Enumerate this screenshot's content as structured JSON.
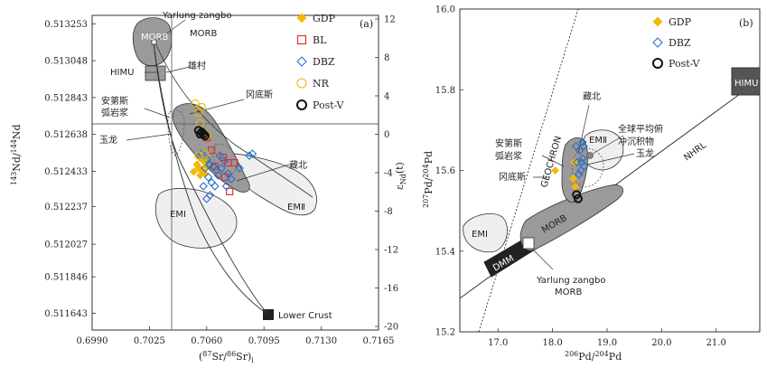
{
  "chart_data": [
    {
      "type": "scatter",
      "panel_label": "(a)",
      "xlabel": "(87Sr/86Sr)i",
      "ylabel": "143Nd/144Nd",
      "y2label": "εNd(t)",
      "xlim": [
        0.699,
        0.7165
      ],
      "ylim": [
        0.51155,
        0.5133
      ],
      "x_ticks": [
        "0.6990",
        "0.7025",
        "0.7060",
        "0.7095",
        "0.7130",
        "0.7165"
      ],
      "y_ticks": [
        "0.511643",
        "0.511846",
        "0.512027",
        "0.512237",
        "0.512433",
        "0.512638",
        "0.512843",
        "0.513048",
        "0.513253"
      ],
      "y2_ticks": [
        "12",
        "8",
        "4",
        "0",
        "-4",
        "-8",
        "-12",
        "-16",
        "-20"
      ],
      "reference_lines": {
        "x": 0.7045,
        "y": 0.51264
      },
      "fields": [
        "MORB",
        "HIMU",
        "EMⅠ",
        "EMⅡ",
        "Lower Crust"
      ],
      "annotations": [
        "Yarlung zangbo",
        "MORB",
        "HIMU",
        "雄村",
        "冈底斯",
        "安第斯",
        "弧岩浆",
        "玉龙",
        "藏北",
        "EMⅠ",
        "EMⅡ",
        "Lower Crust"
      ],
      "series": [
        {
          "name": "GDP",
          "marker": "diamond-filled",
          "color": "#f5b800",
          "points": [
            [
              0.7052,
              0.51243
            ],
            [
              0.7055,
              0.51245
            ],
            [
              0.7057,
              0.51244
            ],
            [
              0.7059,
              0.51242
            ],
            [
              0.7054,
              0.51247
            ],
            [
              0.7058,
              0.51249
            ],
            [
              0.7056,
              0.51241
            ],
            [
              0.706,
              0.51246
            ]
          ]
        },
        {
          "name": "BL",
          "marker": "square-open",
          "color": "#e03030",
          "points": [
            [
              0.706,
              0.51262
            ],
            [
              0.7063,
              0.51255
            ],
            [
              0.707,
              0.51251
            ],
            [
              0.7073,
              0.51248
            ],
            [
              0.7071,
              0.5124
            ],
            [
              0.7077,
              0.51248
            ],
            [
              0.7074,
              0.51232
            ],
            [
              0.7065,
              0.51246
            ]
          ]
        },
        {
          "name": "DBZ",
          "marker": "diamond-open",
          "color": "#2a6fc8",
          "points": [
            [
              0.7057,
              0.51253
            ],
            [
              0.706,
              0.5125
            ],
            [
              0.7062,
              0.51247
            ],
            [
              0.7064,
              0.51246
            ],
            [
              0.7066,
              0.51244
            ],
            [
              0.7061,
              0.5124
            ],
            [
              0.7063,
              0.51237
            ],
            [
              0.7058,
              0.51235
            ],
            [
              0.7067,
              0.51241
            ],
            [
              0.7069,
              0.51245
            ],
            [
              0.7071,
              0.51249
            ],
            [
              0.7073,
              0.51242
            ],
            [
              0.7075,
              0.51239
            ],
            [
              0.7072,
              0.51235
            ],
            [
              0.708,
              0.51245
            ],
            [
              0.7086,
              0.51252
            ],
            [
              0.7088,
              0.51253
            ],
            [
              0.7065,
              0.51235
            ],
            [
              0.7062,
              0.5123
            ],
            [
              0.706,
              0.51228
            ],
            [
              0.7068,
              0.51252
            ],
            [
              0.7059,
              0.51245
            ]
          ]
        },
        {
          "name": "NR",
          "marker": "circle-open",
          "color": "#e8b800",
          "points": [
            [
              0.7053,
              0.51281
            ],
            [
              0.7057,
              0.51279
            ],
            [
              0.7055,
              0.51276
            ],
            [
              0.7058,
              0.51265
            ],
            [
              0.706,
              0.51263
            ],
            [
              0.7056,
              0.5127
            ],
            [
              0.7055,
              0.51252
            ],
            [
              0.7057,
              0.51248
            ],
            [
              0.7059,
              0.51253
            ]
          ]
        },
        {
          "name": "Post-V",
          "marker": "circle-bold",
          "color": "#111111",
          "points": [
            [
              0.7055,
              0.51266
            ],
            [
              0.7057,
              0.51265
            ],
            [
              0.7058,
              0.51264
            ],
            [
              0.7059,
              0.51263
            ],
            [
              0.7056,
              0.51264
            ]
          ]
        }
      ]
    },
    {
      "type": "scatter",
      "panel_label": "(b)",
      "xlabel": "206Pb/204Pb",
      "ylabel": "207Pb/204Pb",
      "xlim": [
        16.3,
        21.8
      ],
      "ylim": [
        15.2,
        16.0
      ],
      "x_ticks": [
        "17.0",
        "18.0",
        "19.0",
        "20.0",
        "21.0"
      ],
      "y_ticks": [
        "15.2",
        "15.4",
        "15.6",
        "15.8",
        "16.0"
      ],
      "fields": [
        "EMⅠ",
        "DMM",
        "MORB",
        "EMⅡ",
        "HIMU"
      ],
      "lines": [
        "GEOCHRON",
        "NHRL"
      ],
      "annotations": [
        "GEOCHRON",
        "NHRL",
        "藏北",
        "全球平均俯",
        "冲沉积物",
        "玉龙",
        "安第斯",
        "弧岩浆",
        "冈底斯",
        "EMⅠ",
        "DMM",
        "MORB",
        "EMⅡ",
        "HIMU",
        "Yarlung zangbo",
        "MORB"
      ],
      "series": [
        {
          "name": "GDP",
          "marker": "diamond-filled",
          "color": "#f5b800",
          "points": [
            [
              18.05,
              15.6
            ],
            [
              18.38,
              15.58
            ],
            [
              18.4,
              15.62
            ],
            [
              18.42,
              15.56
            ]
          ]
        },
        {
          "name": "DBZ",
          "marker": "diamond-open",
          "color": "#2a6fc8",
          "points": [
            [
              18.43,
              15.66
            ],
            [
              18.5,
              15.65
            ],
            [
              18.55,
              15.67
            ],
            [
              18.55,
              15.63
            ],
            [
              18.58,
              15.61
            ],
            [
              18.52,
              15.6
            ],
            [
              18.48,
              15.59
            ],
            [
              18.53,
              15.62
            ],
            [
              18.45,
              15.62
            ],
            [
              18.57,
              15.66
            ]
          ]
        },
        {
          "name": "Post-V",
          "marker": "circle-bold",
          "color": "#111111",
          "points": [
            [
              18.44,
              15.54
            ],
            [
              18.47,
              15.53
            ]
          ]
        }
      ]
    }
  ],
  "legend_a": [
    {
      "name": "GDP",
      "marker": "diamond-filled",
      "color": "#f5b800"
    },
    {
      "name": "BL",
      "marker": "square-open",
      "color": "#e03030"
    },
    {
      "name": "DBZ",
      "marker": "diamond-open",
      "color": "#2a6fc8"
    },
    {
      "name": "NR",
      "marker": "circle-open",
      "color": "#e8b800"
    },
    {
      "name": "Post-V",
      "marker": "circle-bold",
      "color": "#111111"
    }
  ],
  "legend_b": [
    {
      "name": "GDP",
      "marker": "diamond-filled",
      "color": "#f5b800"
    },
    {
      "name": "DBZ",
      "marker": "diamond-open",
      "color": "#2a6fc8"
    },
    {
      "name": "Post-V",
      "marker": "circle-bold",
      "color": "#111111"
    }
  ],
  "colors": {
    "field_dark": "#9a9a9a",
    "field_light": "#efefef",
    "axis": "#333333"
  }
}
